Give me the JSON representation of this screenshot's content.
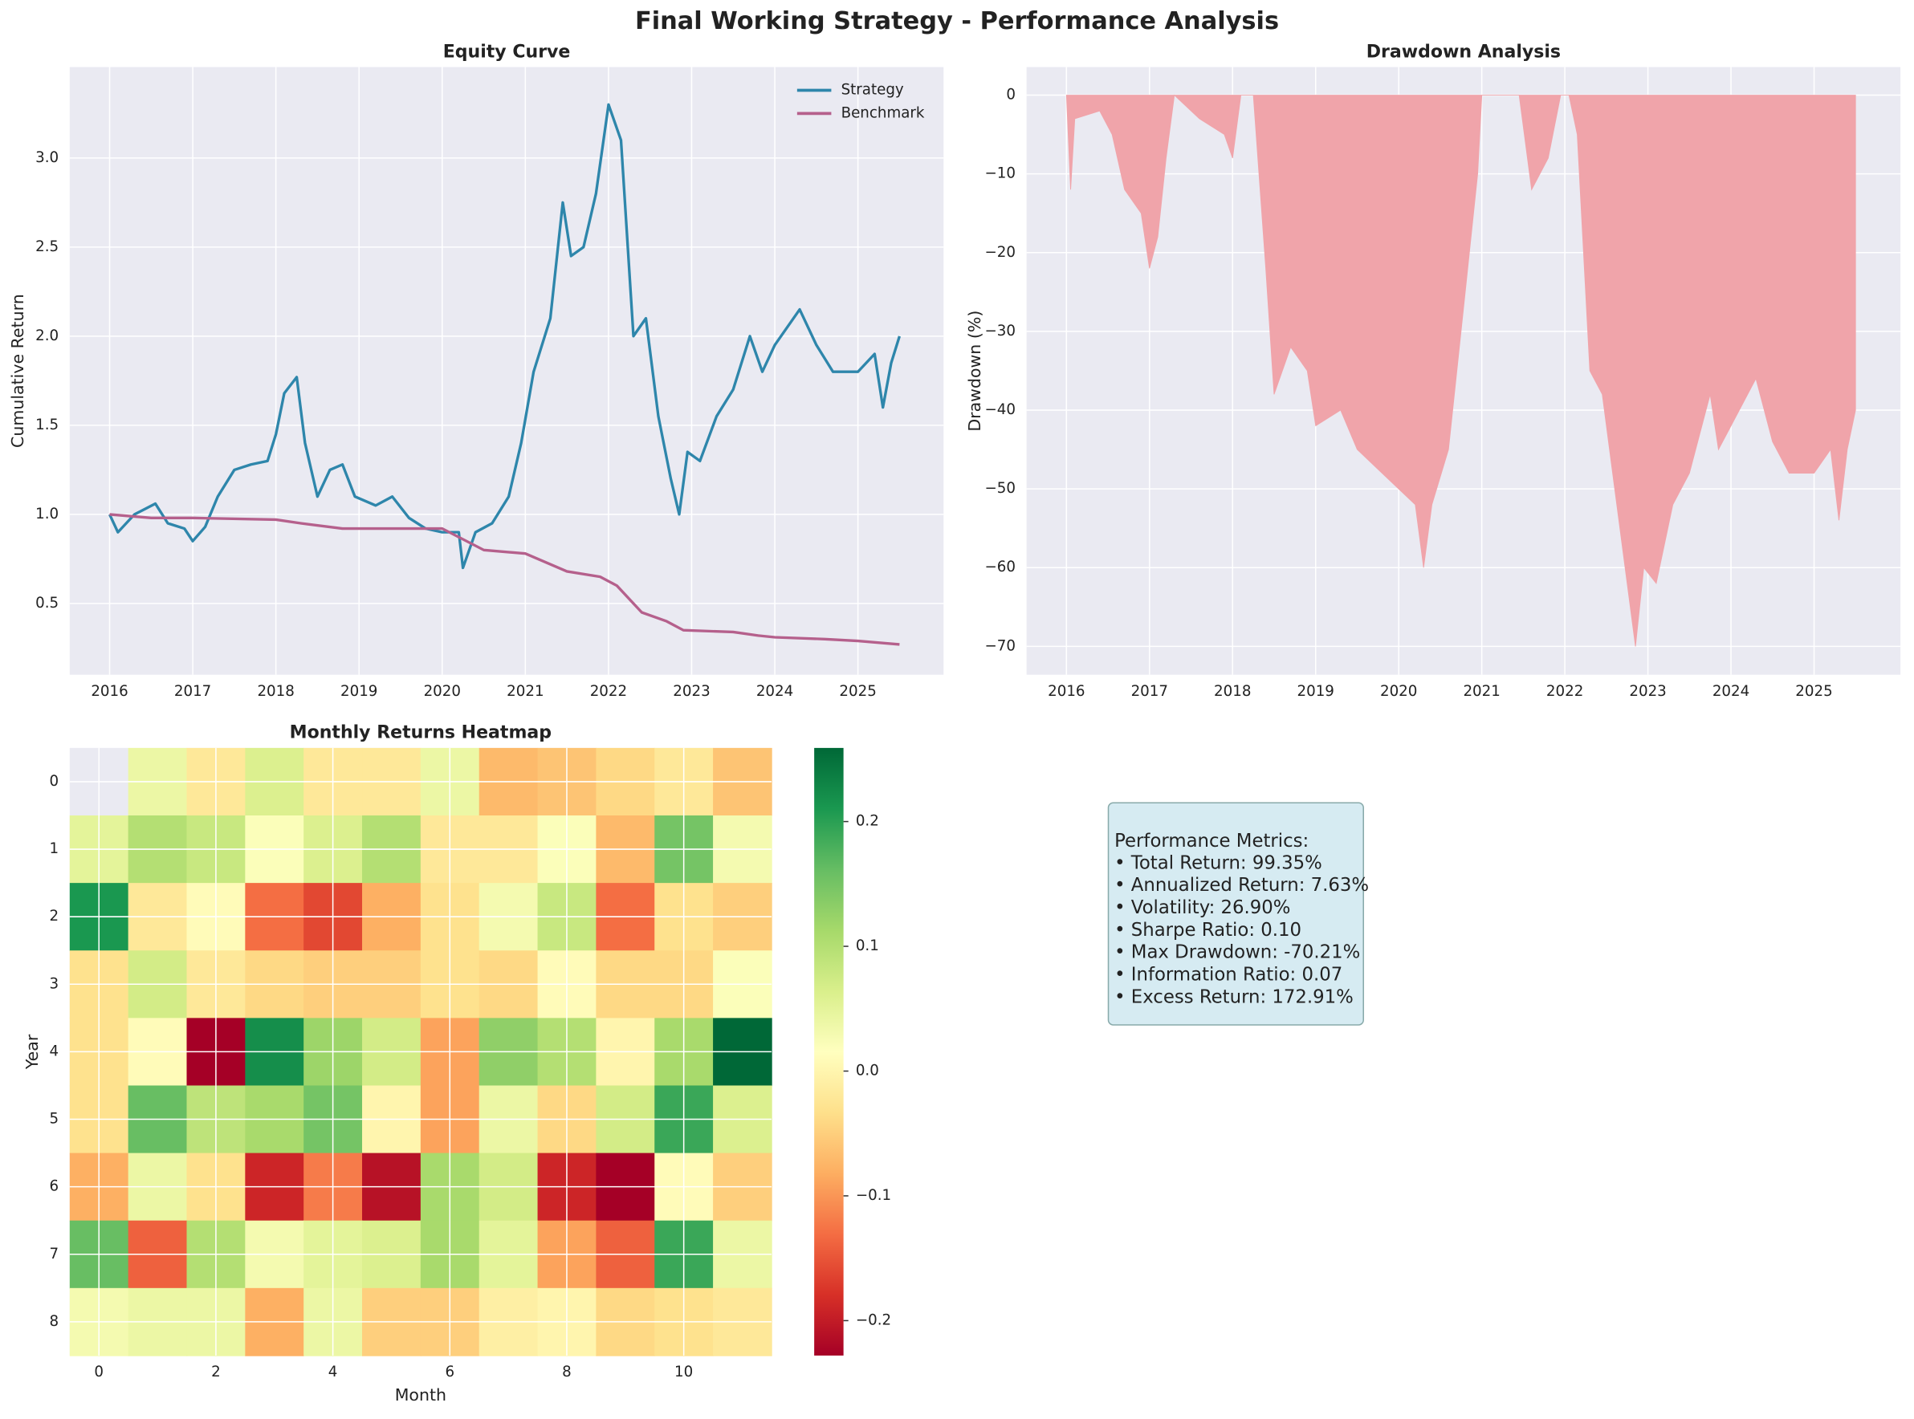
{
  "title": "Final Working Strategy - Performance Analysis",
  "chart_data": [
    {
      "type": "line",
      "title": "Equity Curve",
      "ylabel": "Cumulative Return",
      "xlim": [
        2015.52,
        2026.03
      ],
      "ylim": [
        0.1,
        3.51
      ],
      "xticks": [
        2016,
        2017,
        2018,
        2019,
        2020,
        2021,
        2022,
        2023,
        2024,
        2025
      ],
      "yticks": [
        0.5,
        {
          "value": 1.0,
          "label": "1.0"
        },
        1.5,
        {
          "value": 2.0,
          "label": "2.0"
        },
        2.5,
        {
          "value": 3.0,
          "label": "3.0"
        }
      ],
      "grid": true,
      "legend": "upper right",
      "series": [
        {
          "name": "Strategy",
          "color": "#2e86ab",
          "x": [
            2016.0,
            2016.1,
            2016.3,
            2016.55,
            2016.7,
            2016.9,
            2017.0,
            2017.15,
            2017.3,
            2017.5,
            2017.7,
            2017.9,
            2018.0,
            2018.1,
            2018.25,
            2018.35,
            2018.5,
            2018.65,
            2018.8,
            2018.95,
            2019.2,
            2019.4,
            2019.6,
            2019.8,
            2020.0,
            2020.2,
            2020.25,
            2020.4,
            2020.6,
            2020.8,
            2020.95,
            2021.1,
            2021.3,
            2021.45,
            2021.55,
            2021.7,
            2021.85,
            2022.0,
            2022.15,
            2022.3,
            2022.45,
            2022.6,
            2022.75,
            2022.85,
            2022.95,
            2023.1,
            2023.3,
            2023.5,
            2023.7,
            2023.85,
            2024.0,
            2024.3,
            2024.5,
            2024.7,
            2025.0,
            2025.2,
            2025.3,
            2025.4,
            2025.5
          ],
          "values": [
            1.0,
            0.9,
            1.0,
            1.06,
            0.95,
            0.92,
            0.85,
            0.93,
            1.1,
            1.25,
            1.28,
            1.3,
            1.45,
            1.68,
            1.77,
            1.4,
            1.1,
            1.25,
            1.28,
            1.1,
            1.05,
            1.1,
            0.98,
            0.92,
            0.9,
            0.9,
            0.7,
            0.9,
            0.95,
            1.1,
            1.4,
            1.8,
            2.1,
            2.75,
            2.45,
            2.5,
            2.8,
            3.3,
            3.1,
            2.0,
            2.1,
            1.55,
            1.2,
            1.0,
            1.35,
            1.3,
            1.55,
            1.7,
            2.0,
            1.8,
            1.95,
            2.15,
            1.95,
            1.8,
            1.8,
            1.9,
            1.6,
            1.85,
            2.0
          ]
        },
        {
          "name": "Benchmark",
          "color": "#b5608c",
          "x": [
            2016.0,
            2016.5,
            2017.0,
            2018.0,
            2018.3,
            2018.8,
            2019.5,
            2020.0,
            2020.5,
            2021.0,
            2021.3,
            2021.5,
            2021.9,
            2022.1,
            2022.4,
            2022.7,
            2022.9,
            2023.5,
            2023.8,
            2024.0,
            2024.6,
            2025.0,
            2025.5
          ],
          "values": [
            1.0,
            0.98,
            0.98,
            0.97,
            0.95,
            0.92,
            0.92,
            0.92,
            0.8,
            0.78,
            0.72,
            0.68,
            0.65,
            0.6,
            0.45,
            0.4,
            0.35,
            0.34,
            0.32,
            0.31,
            0.3,
            0.29,
            0.27
          ]
        }
      ]
    },
    {
      "type": "area",
      "title": "Drawdown Analysis",
      "ylabel": "Drawdown (%)",
      "xlim": [
        2015.52,
        2026.04
      ],
      "ylim": [
        -73.6,
        3.56
      ],
      "xticks": [
        2016,
        2017,
        2018,
        2019,
        2020,
        2021,
        2022,
        2023,
        2024,
        2025
      ],
      "yticks": [
        {
          "value": -70,
          "label": "−70"
        },
        {
          "value": -60,
          "label": "−60"
        },
        {
          "value": -50,
          "label": "−50"
        },
        {
          "value": -40,
          "label": "−40"
        },
        {
          "value": -30,
          "label": "−30"
        },
        {
          "value": -20,
          "label": "−20"
        },
        {
          "value": -10,
          "label": "−10"
        },
        0
      ],
      "grid": true,
      "color": "#f0a4aa",
      "x": [
        2016.0,
        2016.05,
        2016.1,
        2016.4,
        2016.55,
        2016.7,
        2016.9,
        2017.0,
        2017.1,
        2017.2,
        2017.3,
        2017.6,
        2017.9,
        2018.0,
        2018.1,
        2018.25,
        2018.4,
        2018.5,
        2018.7,
        2018.9,
        2019.0,
        2019.3,
        2019.5,
        2019.8,
        2020.0,
        2020.2,
        2020.3,
        2020.4,
        2020.6,
        2020.8,
        2020.95,
        2021.0,
        2021.3,
        2021.45,
        2021.6,
        2021.8,
        2021.95,
        2022.05,
        2022.15,
        2022.3,
        2022.45,
        2022.6,
        2022.75,
        2022.85,
        2022.95,
        2023.1,
        2023.3,
        2023.5,
        2023.75,
        2023.85,
        2024.0,
        2024.3,
        2024.5,
        2024.7,
        2025.0,
        2025.2,
        2025.3,
        2025.4,
        2025.5
      ],
      "values": [
        0,
        -12,
        -3,
        -2,
        -5,
        -12,
        -15,
        -22,
        -18,
        -8,
        0,
        -3,
        -5,
        -8,
        0,
        0,
        -22,
        -38,
        -32,
        -35,
        -42,
        -40,
        -45,
        -48,
        -50,
        -52,
        -60,
        -52,
        -45,
        -25,
        -10,
        0,
        0,
        0,
        -12,
        -8,
        0,
        0,
        -5,
        -35,
        -38,
        -50,
        -62,
        -70,
        -60,
        -62,
        -52,
        -48,
        -38,
        -45,
        -42,
        -36,
        -44,
        -48,
        -48,
        -45,
        -54,
        -45,
        -40
      ]
    },
    {
      "type": "heatmap",
      "title": "Monthly Returns Heatmap",
      "xlabel": "Month",
      "ylabel": "Year",
      "xlim": [
        -0.5,
        11.5
      ],
      "ylim": [
        8.5,
        -0.5
      ],
      "xticks": [
        0,
        2,
        4,
        6,
        8,
        10
      ],
      "yticks": [
        0,
        1,
        2,
        3,
        4,
        5,
        6,
        7,
        8
      ],
      "grid": true,
      "colormap": "RdYlGn",
      "clim": [
        -0.228,
        0.259
      ],
      "cticks": [
        {
          "value": -0.2,
          "label": "−0.2"
        },
        {
          "value": -0.1,
          "label": "−0.1"
        },
        {
          "value": 0,
          "label": "0.0"
        },
        0.1,
        0.2
      ],
      "values": [
        [
          null,
          0.04,
          -0.02,
          0.06,
          -0.02,
          -0.02,
          0.04,
          -0.07,
          -0.06,
          -0.04,
          -0.02,
          -0.06
        ],
        [
          0.05,
          0.1,
          0.08,
          0.02,
          0.06,
          0.1,
          -0.02,
          -0.02,
          0.02,
          -0.07,
          0.15,
          0.03
        ],
        [
          0.21,
          -0.02,
          0.01,
          -0.13,
          -0.16,
          -0.08,
          -0.03,
          0.03,
          0.08,
          -0.13,
          -0.03,
          -0.05
        ],
        [
          -0.03,
          0.07,
          -0.02,
          -0.04,
          -0.05,
          -0.05,
          -0.03,
          -0.04,
          0.01,
          -0.04,
          -0.04,
          0.02
        ],
        [
          -0.03,
          0.01,
          -0.23,
          0.22,
          0.12,
          0.07,
          -0.09,
          0.13,
          0.1,
          0.0,
          0.11,
          0.26
        ],
        [
          -0.03,
          0.16,
          0.09,
          0.11,
          0.15,
          0.0,
          -0.09,
          0.04,
          -0.04,
          0.07,
          0.19,
          0.06
        ],
        [
          -0.08,
          0.04,
          -0.03,
          -0.19,
          -0.12,
          -0.21,
          0.11,
          0.07,
          -0.19,
          -0.23,
          0.01,
          -0.05
        ],
        [
          0.16,
          -0.14,
          0.1,
          0.03,
          0.05,
          0.06,
          0.11,
          0.05,
          -0.09,
          -0.14,
          0.19,
          0.04
        ],
        [
          0.03,
          0.04,
          0.04,
          -0.08,
          0.04,
          -0.05,
          -0.05,
          -0.01,
          0.0,
          -0.04,
          -0.03,
          -0.02
        ]
      ]
    }
  ],
  "metrics": {
    "title": "Performance Metrics:",
    "lines": [
      "• Total Return: 99.35%",
      "• Annualized Return: 7.63%",
      "• Volatility: 26.90%",
      "• Sharpe Ratio: 0.10",
      "• Max Drawdown: -70.21%",
      "• Information Ratio: 0.07",
      "• Excess Return: 172.91%"
    ]
  }
}
